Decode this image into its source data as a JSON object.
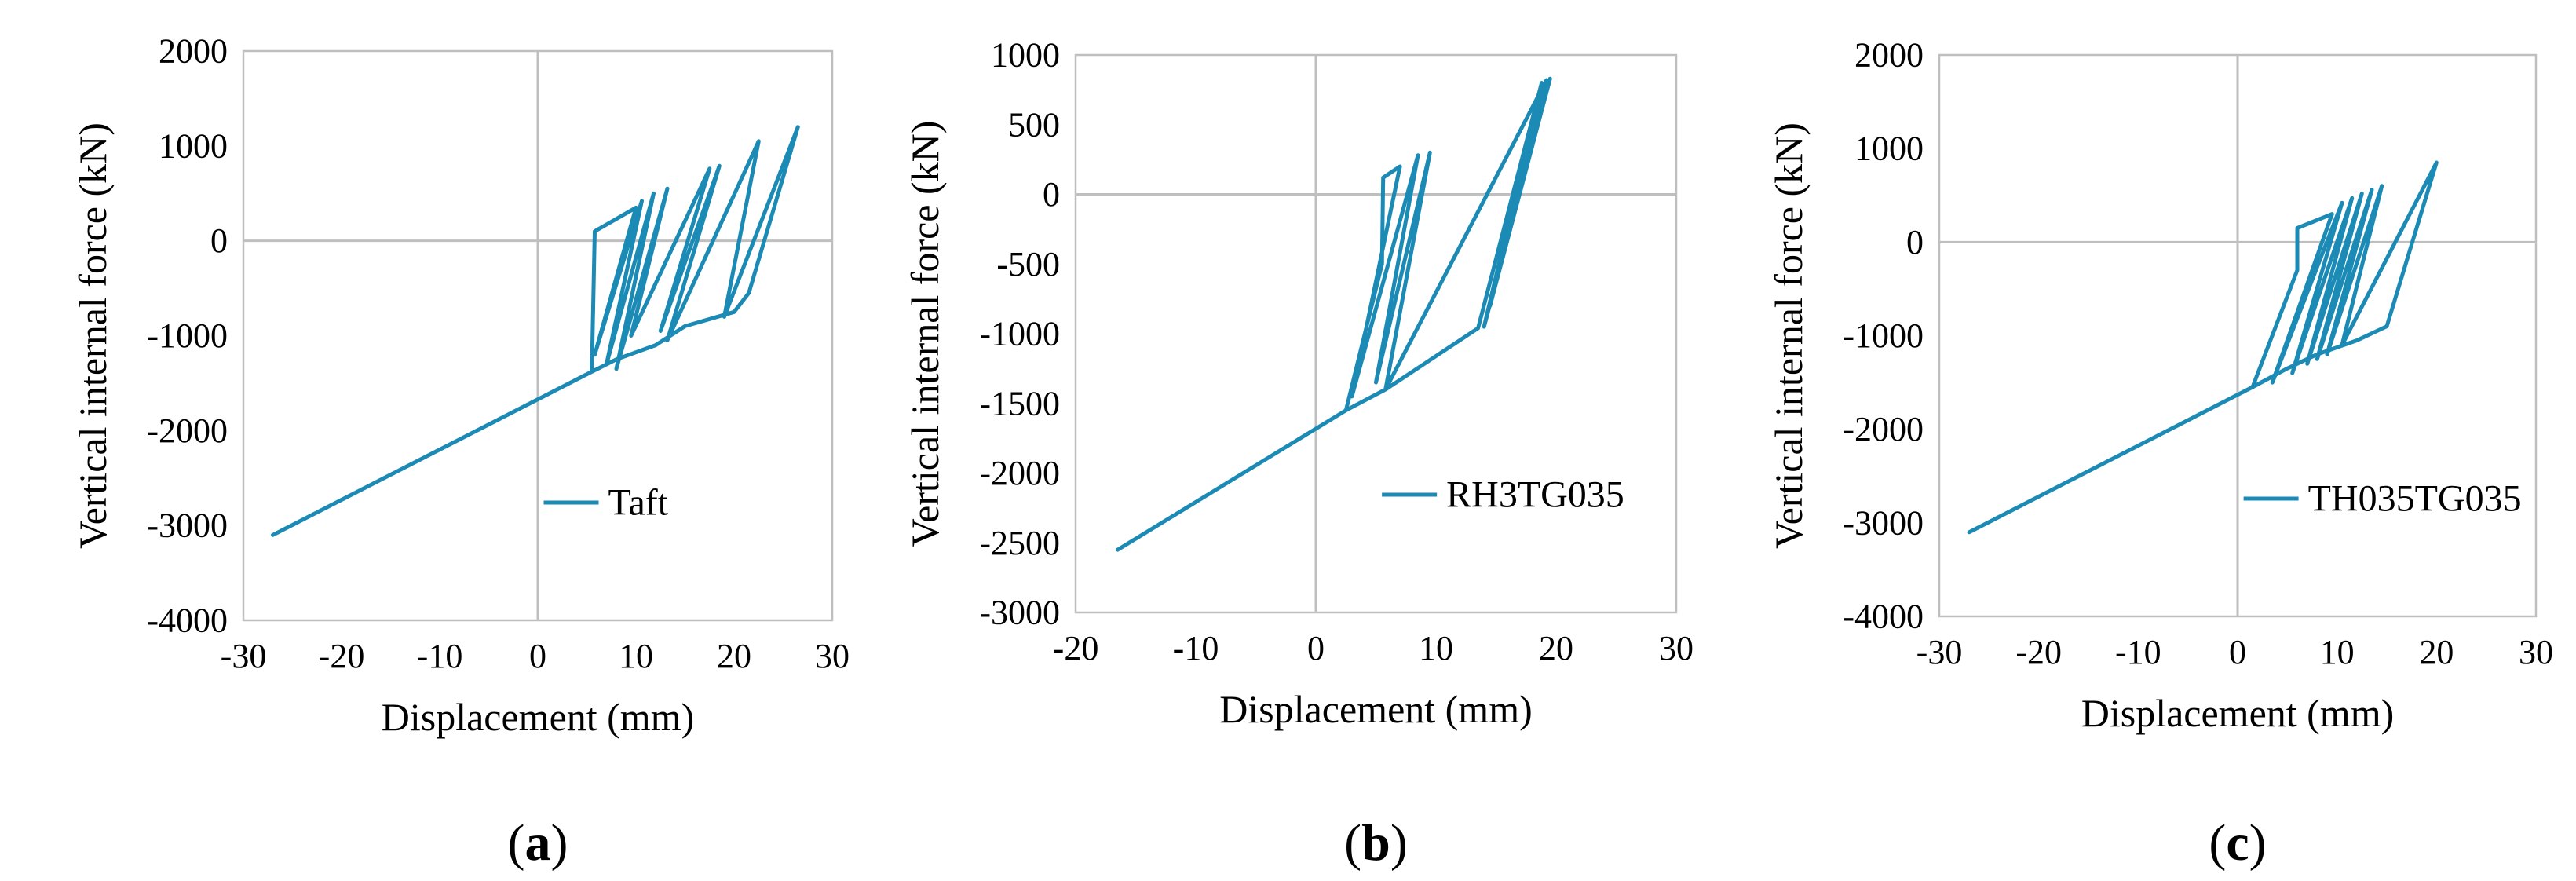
{
  "figure": {
    "series_color": "#1b8ab5",
    "grid_color": "#bfbfbf",
    "axis_color": "#d9d9d9"
  },
  "chart_data": [
    {
      "type": "line",
      "panel_label": "a",
      "xlabel": "Displacement (mm)",
      "ylabel": "Vertical internal force (kN)",
      "xlim": [
        -30,
        30
      ],
      "ylim": [
        -4000,
        2000
      ],
      "xticks": [
        -30,
        -20,
        -10,
        0,
        10,
        20,
        30
      ],
      "yticks": [
        -4000,
        -3000,
        -2000,
        -1000,
        0,
        1000,
        2000
      ],
      "legend": {
        "label": "Taft",
        "position": "lower-right"
      },
      "series": [
        {
          "name": "Taft",
          "x": [
            -27.0,
            5.5,
            5.8,
            10.0,
            5.8,
            10.6,
            7.0,
            11.8,
            8.0,
            13.2,
            9.5,
            17.5,
            12.5,
            18.5,
            13.2,
            22.5,
            19.0,
            26.5,
            21.5,
            20.0,
            15.0,
            12.0,
            8.0,
            5.5,
            -27.0
          ],
          "y": [
            -3100,
            -1380,
            100,
            350,
            -1200,
            420,
            -1300,
            500,
            -1350,
            550,
            -1000,
            760,
            -950,
            790,
            -1050,
            1050,
            -800,
            1200,
            -550,
            -750,
            -900,
            -1100,
            -1250,
            -1380,
            -3100
          ]
        }
      ]
    },
    {
      "type": "line",
      "panel_label": "b",
      "xlabel": "Displacement (mm)",
      "ylabel": "Vertical internal force (kN)",
      "xlim": [
        -20,
        30
      ],
      "ylim": [
        -3000,
        1000
      ],
      "xticks": [
        -20,
        -10,
        0,
        10,
        20,
        30
      ],
      "yticks": [
        -3000,
        -2500,
        -2000,
        -1500,
        -1000,
        -500,
        0,
        500,
        1000
      ],
      "legend": {
        "label": "RH3TG035",
        "position": "lower-right"
      },
      "series": [
        {
          "name": "RH3TG035",
          "x": [
            -16.5,
            2.5,
            5.5,
            5.6,
            7.0,
            3.0,
            8.5,
            5.0,
            9.5,
            5.8,
            19.2,
            14.5,
            19.5,
            14.0,
            18.8,
            13.5,
            13.5,
            5.8,
            2.5,
            -16.5
          ],
          "y": [
            -2550,
            -1550,
            -500,
            120,
            200,
            -1450,
            280,
            -1350,
            300,
            -1400,
            820,
            -800,
            830,
            -950,
            800,
            -960,
            -960,
            -1400,
            -1550,
            -2550
          ]
        }
      ]
    },
    {
      "type": "line",
      "panel_label": "c",
      "xlabel": "Displacement (mm)",
      "ylabel": "Vertical internal force (kN)",
      "xlim": [
        -30,
        30
      ],
      "ylim": [
        -4000,
        2000
      ],
      "xticks": [
        -30,
        -20,
        -10,
        0,
        10,
        20,
        30
      ],
      "yticks": [
        -4000,
        -3000,
        -2000,
        -1000,
        0,
        1000,
        2000
      ],
      "legend": {
        "label": "TH035TG035",
        "position": "lower-right"
      },
      "series": [
        {
          "name": "TH035TG035",
          "x": [
            -27.0,
            1.5,
            6.0,
            6.0,
            9.5,
            3.5,
            10.5,
            5.5,
            11.5,
            7.0,
            12.5,
            8.0,
            13.5,
            9.0,
            14.5,
            10.5,
            20.0,
            15.0,
            12.0,
            8.0,
            5.0,
            1.5,
            -27.0
          ],
          "y": [
            -3100,
            -1550,
            -300,
            150,
            300,
            -1500,
            420,
            -1400,
            470,
            -1300,
            520,
            -1250,
            560,
            -1200,
            600,
            -1100,
            850,
            -900,
            -1050,
            -1200,
            -1350,
            -1550,
            -3100
          ]
        }
      ]
    }
  ]
}
